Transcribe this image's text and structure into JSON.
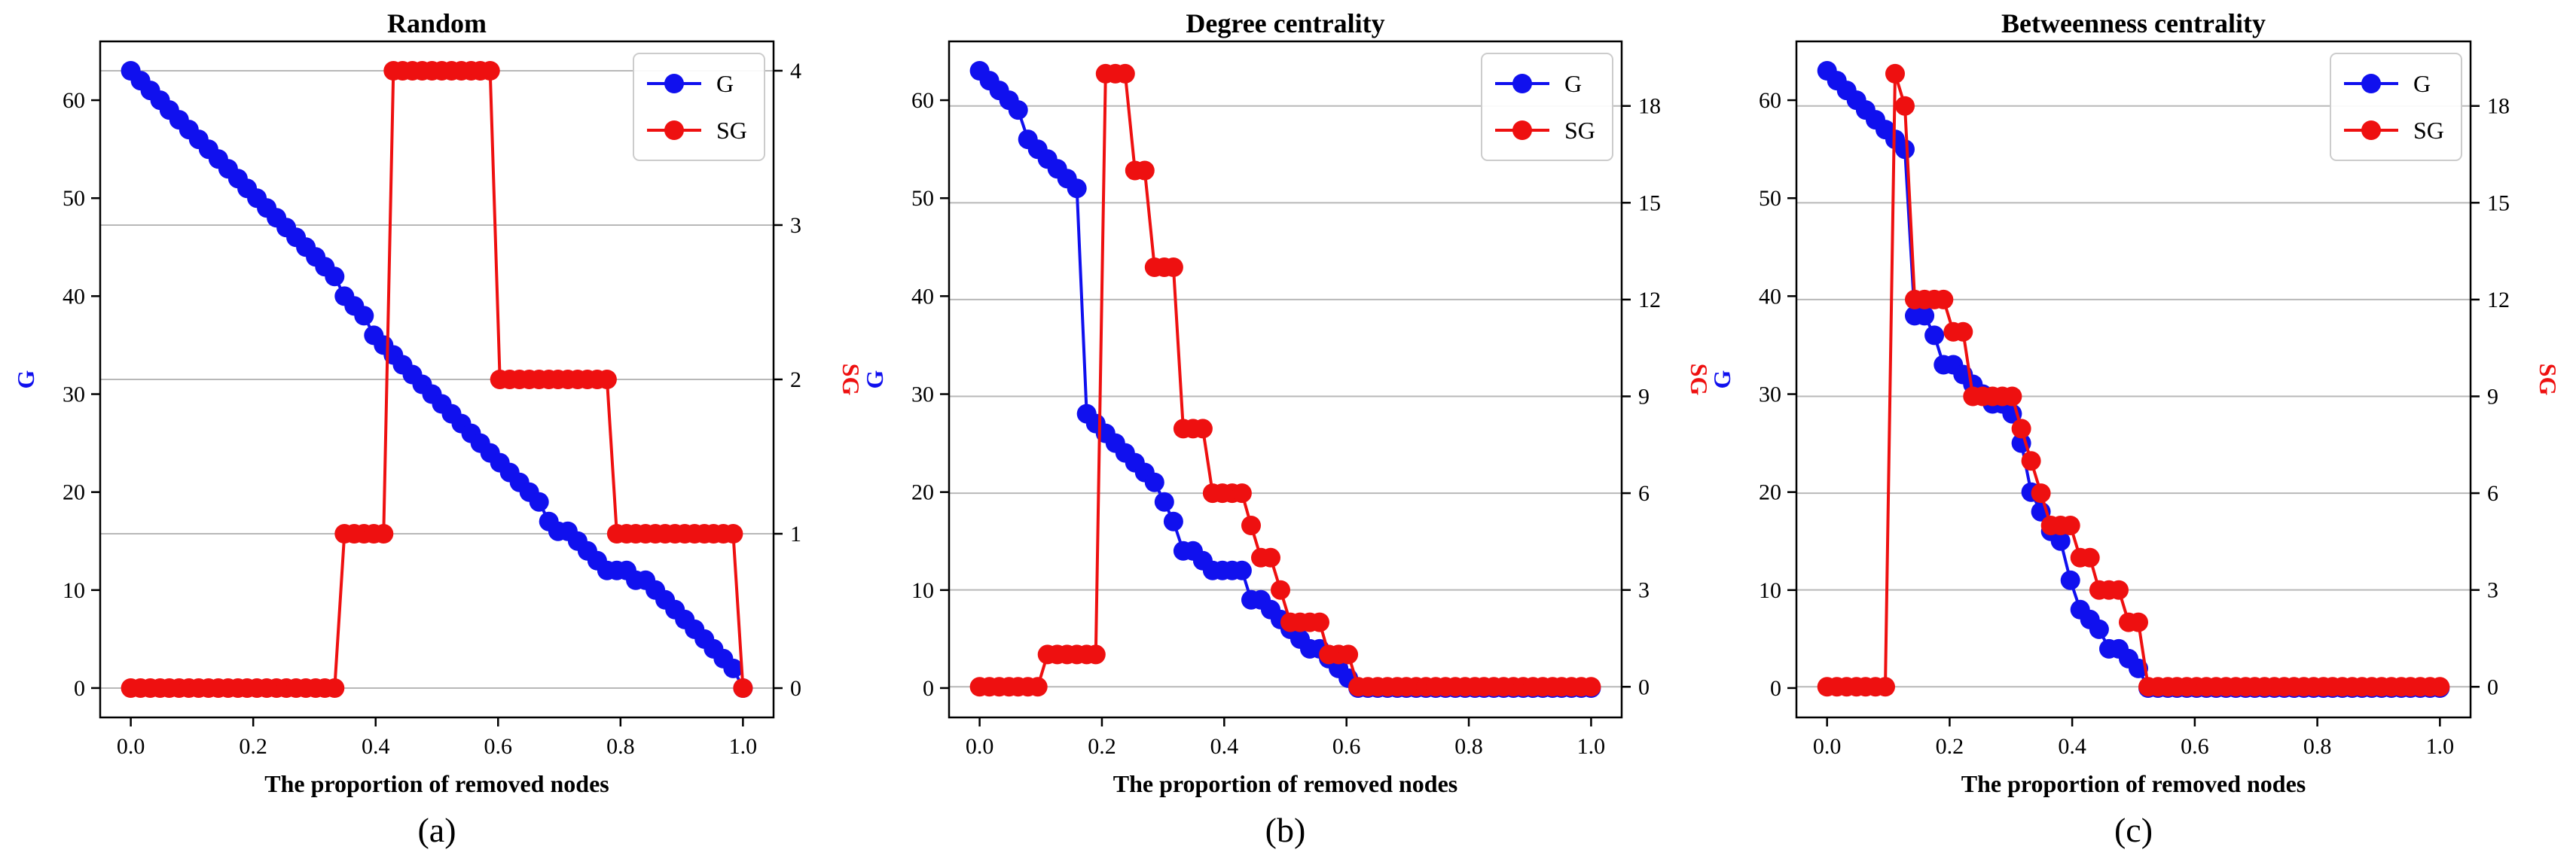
{
  "colors": {
    "g": "#1010ee",
    "sg": "#ee1010",
    "grid": "#b8b8b8",
    "axis": "#000000"
  },
  "legend_labels": [
    "G",
    "SG"
  ],
  "chart_data": [
    {
      "type": "line",
      "title": "Random",
      "xlabel": "The proportion of removed nodes",
      "ylabel_left": "G",
      "ylabel_right": "SG",
      "caption": "(a)",
      "xlim": [
        -0.05,
        1.05
      ],
      "xticks": [
        0.0,
        0.2,
        0.4,
        0.6,
        0.8,
        1.0
      ],
      "ylim_left": [
        -3,
        66
      ],
      "yticks_left": [
        0,
        10,
        20,
        30,
        40,
        50,
        60
      ],
      "ylim_right": [
        -0.19,
        4.19
      ],
      "yticks_right": [
        0,
        1,
        2,
        3,
        4
      ],
      "grid_right": true,
      "legend": "top-right",
      "series": [
        {
          "name": "G",
          "axis": "left",
          "x": [
            0.0,
            0.016,
            0.032,
            0.048,
            0.063,
            0.079,
            0.095,
            0.111,
            0.127,
            0.143,
            0.159,
            0.175,
            0.19,
            0.206,
            0.222,
            0.238,
            0.254,
            0.27,
            0.286,
            0.302,
            0.317,
            0.333,
            0.349,
            0.365,
            0.381,
            0.397,
            0.413,
            0.429,
            0.444,
            0.46,
            0.476,
            0.492,
            0.508,
            0.524,
            0.54,
            0.556,
            0.571,
            0.587,
            0.603,
            0.619,
            0.635,
            0.651,
            0.667,
            0.683,
            0.698,
            0.714,
            0.73,
            0.746,
            0.762,
            0.778,
            0.794,
            0.81,
            0.825,
            0.841,
            0.857,
            0.873,
            0.889,
            0.905,
            0.921,
            0.937,
            0.952,
            0.968,
            0.984,
            1.0
          ],
          "values": [
            63,
            62,
            61,
            60,
            59,
            58,
            57,
            56,
            55,
            54,
            53,
            52,
            51,
            50,
            49,
            48,
            47,
            46,
            45,
            44,
            43,
            42,
            40,
            39,
            38,
            36,
            35,
            34,
            33,
            32,
            31,
            30,
            29,
            28,
            27,
            26,
            25,
            24,
            23,
            22,
            21,
            20,
            19,
            17,
            16,
            16,
            15,
            14,
            13,
            12,
            12,
            12,
            11,
            11,
            10,
            9,
            8,
            7,
            6,
            5,
            4,
            3,
            2,
            0
          ]
        },
        {
          "name": "SG",
          "axis": "right",
          "x": [
            0.0,
            0.016,
            0.032,
            0.048,
            0.063,
            0.079,
            0.095,
            0.111,
            0.127,
            0.143,
            0.159,
            0.175,
            0.19,
            0.206,
            0.222,
            0.238,
            0.254,
            0.27,
            0.286,
            0.302,
            0.317,
            0.333,
            0.349,
            0.365,
            0.381,
            0.397,
            0.413,
            0.429,
            0.444,
            0.46,
            0.476,
            0.492,
            0.508,
            0.524,
            0.54,
            0.556,
            0.571,
            0.587,
            0.603,
            0.619,
            0.635,
            0.651,
            0.667,
            0.683,
            0.698,
            0.714,
            0.73,
            0.746,
            0.762,
            0.778,
            0.794,
            0.81,
            0.825,
            0.841,
            0.857,
            0.873,
            0.889,
            0.905,
            0.921,
            0.937,
            0.952,
            0.968,
            0.984,
            1.0
          ],
          "values": [
            0,
            0,
            0,
            0,
            0,
            0,
            0,
            0,
            0,
            0,
            0,
            0,
            0,
            0,
            0,
            0,
            0,
            0,
            0,
            0,
            0,
            0,
            1,
            1,
            1,
            1,
            1,
            4,
            4,
            4,
            4,
            4,
            4,
            4,
            4,
            4,
            4,
            4,
            2,
            2,
            2,
            2,
            2,
            2,
            2,
            2,
            2,
            2,
            2,
            2,
            1,
            1,
            1,
            1,
            1,
            1,
            1,
            1,
            1,
            1,
            1,
            1,
            1,
            0
          ]
        }
      ]
    },
    {
      "type": "line",
      "title": "Degree centrality",
      "xlabel": "The proportion of removed nodes",
      "ylabel_left": "G",
      "ylabel_right": "SG",
      "caption": "(b)",
      "xlim": [
        -0.05,
        1.05
      ],
      "xticks": [
        0.0,
        0.2,
        0.4,
        0.6,
        0.8,
        1.0
      ],
      "ylim_left": [
        -3,
        66
      ],
      "yticks_left": [
        0,
        10,
        20,
        30,
        40,
        50,
        60
      ],
      "ylim_right": [
        -0.95,
        20.0
      ],
      "yticks_right": [
        0,
        3,
        6,
        9,
        12,
        15,
        18
      ],
      "grid_right": true,
      "legend": "top-right",
      "series": [
        {
          "name": "G",
          "axis": "left",
          "x": [
            0.0,
            0.016,
            0.032,
            0.048,
            0.063,
            0.079,
            0.095,
            0.111,
            0.127,
            0.143,
            0.159,
            0.175,
            0.19,
            0.206,
            0.222,
            0.238,
            0.254,
            0.27,
            0.286,
            0.302,
            0.317,
            0.333,
            0.349,
            0.365,
            0.381,
            0.397,
            0.413,
            0.429,
            0.444,
            0.46,
            0.476,
            0.492,
            0.508,
            0.524,
            0.54,
            0.556,
            0.571,
            0.587,
            0.603,
            0.619,
            0.635,
            0.651,
            0.667,
            0.683,
            0.698,
            0.714,
            0.73,
            0.746,
            0.762,
            0.778,
            0.794,
            0.81,
            0.825,
            0.841,
            0.857,
            0.873,
            0.889,
            0.905,
            0.921,
            0.937,
            0.952,
            0.968,
            0.984,
            1.0
          ],
          "values": [
            63,
            62,
            61,
            60,
            59,
            56,
            55,
            54,
            53,
            52,
            51,
            28,
            27,
            26,
            25,
            24,
            23,
            22,
            21,
            19,
            17,
            14,
            14,
            13,
            12,
            12,
            12,
            12,
            9,
            9,
            8,
            7,
            6,
            5,
            4,
            4,
            3,
            2,
            1,
            0,
            0,
            0,
            0,
            0,
            0,
            0,
            0,
            0,
            0,
            0,
            0,
            0,
            0,
            0,
            0,
            0,
            0,
            0,
            0,
            0,
            0,
            0,
            0,
            0
          ]
        },
        {
          "name": "SG",
          "axis": "right",
          "x": [
            0.0,
            0.016,
            0.032,
            0.048,
            0.063,
            0.079,
            0.095,
            0.111,
            0.127,
            0.143,
            0.159,
            0.175,
            0.19,
            0.206,
            0.222,
            0.238,
            0.254,
            0.27,
            0.286,
            0.302,
            0.317,
            0.333,
            0.349,
            0.365,
            0.381,
            0.397,
            0.413,
            0.429,
            0.444,
            0.46,
            0.476,
            0.492,
            0.508,
            0.524,
            0.54,
            0.556,
            0.571,
            0.587,
            0.603,
            0.619,
            0.635,
            0.651,
            0.667,
            0.683,
            0.698,
            0.714,
            0.73,
            0.746,
            0.762,
            0.778,
            0.794,
            0.81,
            0.825,
            0.841,
            0.857,
            0.873,
            0.889,
            0.905,
            0.921,
            0.937,
            0.952,
            0.968,
            0.984,
            1.0
          ],
          "values": [
            0,
            0,
            0,
            0,
            0,
            0,
            0,
            1,
            1,
            1,
            1,
            1,
            1,
            19,
            19,
            19,
            16,
            16,
            13,
            13,
            13,
            8,
            8,
            8,
            6,
            6,
            6,
            6,
            5,
            4,
            4,
            3,
            2,
            2,
            2,
            2,
            1,
            1,
            1,
            0,
            0,
            0,
            0,
            0,
            0,
            0,
            0,
            0,
            0,
            0,
            0,
            0,
            0,
            0,
            0,
            0,
            0,
            0,
            0,
            0,
            0,
            0,
            0,
            0
          ]
        }
      ]
    },
    {
      "type": "line",
      "title": "Betweenness centrality",
      "xlabel": "The proportion of removed nodes",
      "ylabel_left": "G",
      "ylabel_right": "SG",
      "caption": "(c)",
      "xlim": [
        -0.05,
        1.05
      ],
      "xticks": [
        0.0,
        0.2,
        0.4,
        0.6,
        0.8,
        1.0
      ],
      "ylim_left": [
        -3,
        66
      ],
      "yticks_left": [
        0,
        10,
        20,
        30,
        40,
        50,
        60
      ],
      "ylim_right": [
        -0.95,
        20.0
      ],
      "yticks_right": [
        0,
        3,
        6,
        9,
        12,
        15,
        18
      ],
      "grid_right": true,
      "legend": "top-right",
      "series": [
        {
          "name": "G",
          "axis": "left",
          "x": [
            0.0,
            0.016,
            0.032,
            0.048,
            0.063,
            0.079,
            0.095,
            0.111,
            0.127,
            0.143,
            0.159,
            0.175,
            0.19,
            0.206,
            0.222,
            0.238,
            0.254,
            0.27,
            0.286,
            0.302,
            0.317,
            0.333,
            0.349,
            0.365,
            0.381,
            0.397,
            0.413,
            0.429,
            0.444,
            0.46,
            0.476,
            0.492,
            0.508,
            0.524,
            0.54,
            0.556,
            0.571,
            0.587,
            0.603,
            0.619,
            0.635,
            0.651,
            0.667,
            0.683,
            0.698,
            0.714,
            0.73,
            0.746,
            0.762,
            0.778,
            0.794,
            0.81,
            0.825,
            0.841,
            0.857,
            0.873,
            0.889,
            0.905,
            0.921,
            0.937,
            0.952,
            0.968,
            0.984,
            1.0
          ],
          "values": [
            63,
            62,
            61,
            60,
            59,
            58,
            57,
            56,
            55,
            38,
            38,
            36,
            33,
            33,
            32,
            31,
            30,
            29,
            29,
            28,
            25,
            20,
            18,
            16,
            15,
            11,
            8,
            7,
            6,
            4,
            4,
            3,
            2,
            0,
            0,
            0,
            0,
            0,
            0,
            0,
            0,
            0,
            0,
            0,
            0,
            0,
            0,
            0,
            0,
            0,
            0,
            0,
            0,
            0,
            0,
            0,
            0,
            0,
            0,
            0,
            0,
            0,
            0,
            0
          ]
        },
        {
          "name": "SG",
          "axis": "right",
          "x": [
            0.0,
            0.016,
            0.032,
            0.048,
            0.063,
            0.079,
            0.095,
            0.111,
            0.127,
            0.143,
            0.159,
            0.175,
            0.19,
            0.206,
            0.222,
            0.238,
            0.254,
            0.27,
            0.286,
            0.302,
            0.317,
            0.333,
            0.349,
            0.365,
            0.381,
            0.397,
            0.413,
            0.429,
            0.444,
            0.46,
            0.476,
            0.492,
            0.508,
            0.524,
            0.54,
            0.556,
            0.571,
            0.587,
            0.603,
            0.619,
            0.635,
            0.651,
            0.667,
            0.683,
            0.698,
            0.714,
            0.73,
            0.746,
            0.762,
            0.778,
            0.794,
            0.81,
            0.825,
            0.841,
            0.857,
            0.873,
            0.889,
            0.905,
            0.921,
            0.937,
            0.952,
            0.968,
            0.984,
            1.0
          ],
          "values": [
            0,
            0,
            0,
            0,
            0,
            0,
            0,
            19,
            18,
            12,
            12,
            12,
            12,
            11,
            11,
            9,
            9,
            9,
            9,
            9,
            8,
            7,
            6,
            5,
            5,
            5,
            4,
            4,
            3,
            3,
            3,
            2,
            2,
            0,
            0,
            0,
            0,
            0,
            0,
            0,
            0,
            0,
            0,
            0,
            0,
            0,
            0,
            0,
            0,
            0,
            0,
            0,
            0,
            0,
            0,
            0,
            0,
            0,
            0,
            0,
            0,
            0,
            0,
            0
          ]
        }
      ]
    }
  ]
}
